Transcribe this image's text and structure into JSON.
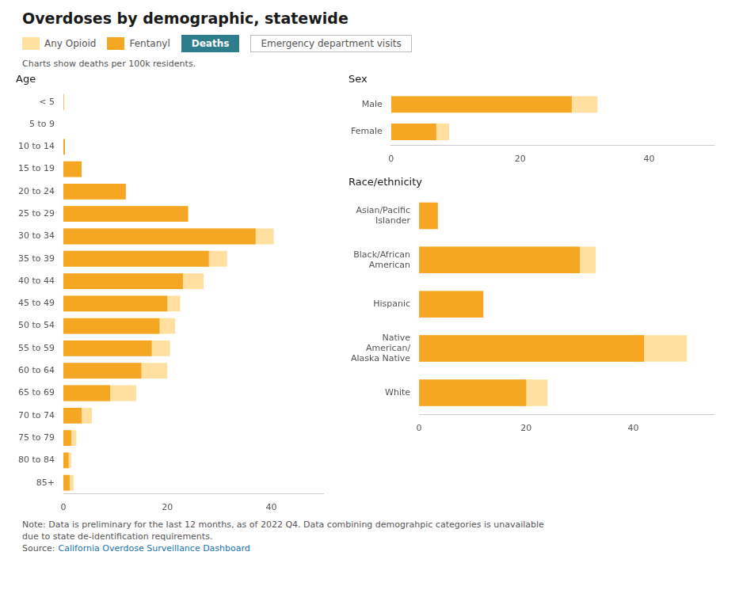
{
  "title": "Overdoses by demographic, statewide",
  "subtitle": "Charts show deaths per 100k residents.",
  "legend": "top",
  "buttons": [
    "Deaths",
    "Emergency department visits"
  ],
  "notes": [
    "Note: Data is preliminary for the last 12 months, as of 2022 Q4. Data combining demograhpic categories is unavailable",
    "due to state de-identification requirements."
  ],
  "source": {
    "label": "Source:",
    "link": "California Overdose Surveillance Dashboard"
  },
  "chart_data": [
    {
      "type": "bar",
      "title": "Age",
      "orientation": "horizontal",
      "grid": false,
      "categories": [
        "85+",
        "80 to 84",
        "75 to 79",
        "70 to 74",
        "65 to 69",
        "60 to 64",
        "55 to 59",
        "50 to 54",
        "45 to 49",
        "40 to 44",
        "35 to 39",
        "30 to 34",
        "25 to 29",
        "20 to 24",
        "15 to 19",
        "10 to 14",
        "5 to 9",
        "< 5"
      ],
      "series": [
        {
          "name": "Any Opioid",
          "color": "#FFE0A0",
          "values": [
            2.0,
            1.5,
            2.5,
            5.5,
            14.0,
            20.0,
            20.5,
            21.5,
            22.5,
            27.0,
            31.5,
            40.5,
            24.0,
            12.0,
            3.5,
            0.3,
            0.0,
            0.1
          ]
        },
        {
          "name": "Fentanyl",
          "color": "#F5A623",
          "values": [
            1.2,
            1.0,
            1.5,
            3.5,
            9.0,
            15.0,
            17.0,
            18.5,
            20.0,
            23.0,
            28.0,
            37.0,
            24.0,
            12.0,
            3.5,
            0.3,
            0.0,
            0.1
          ]
        }
      ],
      "xlim": [
        0,
        50
      ],
      "xticks": [
        0,
        20,
        40
      ]
    },
    {
      "type": "bar",
      "title": "Sex",
      "orientation": "horizontal",
      "grid": false,
      "categories": [
        "Female",
        "Male"
      ],
      "series": [
        {
          "name": "Any Opioid",
          "color": "#FFE0A0",
          "values": [
            9.0,
            32.0
          ]
        },
        {
          "name": "Fentanyl",
          "color": "#F5A623",
          "values": [
            7.0,
            28.0
          ]
        }
      ],
      "xlim": [
        0,
        50
      ],
      "xticks": [
        0,
        20,
        40
      ]
    },
    {
      "type": "bar",
      "title": "Race/ethnicity",
      "orientation": "horizontal",
      "grid": false,
      "categories": [
        "White",
        "Native\nAmerican/\nAlaska Native",
        "Hispanic",
        "Black/African\nAmerican",
        "Asian/Pacific\nIslander"
      ],
      "series": [
        {
          "name": "Any Opioid",
          "color": "#FFE0A0",
          "values": [
            24.0,
            50.0,
            12.0,
            33.0,
            3.5
          ]
        },
        {
          "name": "Fentanyl",
          "color": "#F5A623",
          "values": [
            20.0,
            42.0,
            12.0,
            30.0,
            3.5
          ]
        }
      ],
      "xlim": [
        0,
        55
      ],
      "xticks": [
        0,
        20,
        40
      ]
    }
  ]
}
